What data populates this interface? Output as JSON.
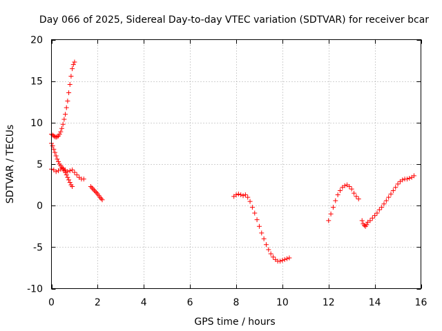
{
  "chart_data": {
    "type": "scatter",
    "title": "Day 066 of 2025, Sidereal Day-to-day VTEC variation (SDTVAR) for receiver bcar",
    "xlabel": "GPS time / hours",
    "ylabel": "SDTVAR / TECUs",
    "xlim": [
      0,
      16
    ],
    "ylim": [
      -10,
      20
    ],
    "xticks": [
      0,
      2,
      4,
      6,
      8,
      10,
      12,
      14,
      16
    ],
    "yticks": [
      -10,
      -5,
      0,
      5,
      10,
      15,
      20
    ],
    "grid": true,
    "marker": "+",
    "color": "#ff0000",
    "series": [
      {
        "name": "segment-1",
        "x": [
          0.0,
          0.05,
          0.1,
          0.15,
          0.2,
          0.25,
          0.3,
          0.35,
          0.4,
          0.45,
          0.5,
          0.55,
          0.6,
          0.65,
          0.7,
          0.75,
          0.8,
          0.85,
          0.9,
          0.95,
          1.0
        ],
        "y": [
          8.6,
          8.5,
          8.4,
          8.3,
          8.25,
          8.3,
          8.4,
          8.6,
          8.9,
          9.3,
          9.8,
          10.4,
          11.0,
          11.8,
          12.6,
          13.6,
          14.6,
          15.6,
          16.5,
          17.0,
          17.3
        ]
      },
      {
        "name": "segment-2",
        "x": [
          0.0,
          0.05,
          0.1,
          0.15,
          0.2,
          0.25,
          0.3,
          0.35,
          0.4,
          0.45,
          0.5,
          0.55,
          0.6,
          0.65,
          0.7,
          0.75,
          0.8,
          0.85,
          0.9
        ],
        "y": [
          7.5,
          7.2,
          6.8,
          6.4,
          6.0,
          5.6,
          5.3,
          5.0,
          4.8,
          4.6,
          4.4,
          4.2,
          4.0,
          3.7,
          3.4,
          3.1,
          2.8,
          2.5,
          2.3
        ]
      },
      {
        "name": "segment-3",
        "x": [
          0.0,
          0.1,
          0.2,
          0.3,
          0.4,
          0.5,
          0.6,
          0.7,
          0.8,
          0.9,
          1.0,
          1.1,
          1.2,
          1.3,
          1.4
        ],
        "y": [
          4.4,
          4.3,
          4.1,
          4.2,
          4.4,
          4.5,
          4.3,
          4.1,
          4.2,
          4.3,
          4.0,
          3.7,
          3.4,
          3.2,
          3.2
        ]
      },
      {
        "name": "segment-4",
        "x": [
          1.7,
          1.75,
          1.8,
          1.85,
          1.9,
          1.95,
          2.0,
          2.05,
          2.1,
          2.15,
          2.2
        ],
        "y": [
          2.3,
          2.15,
          2.0,
          1.85,
          1.7,
          1.55,
          1.4,
          1.2,
          1.0,
          0.85,
          0.7
        ]
      },
      {
        "name": "segment-5",
        "x": [
          7.9,
          8.0,
          8.1,
          8.2,
          8.3,
          8.4,
          8.5,
          8.6,
          8.7,
          8.8,
          8.9,
          9.0,
          9.1,
          9.2,
          9.3,
          9.4,
          9.5,
          9.6,
          9.7,
          9.8,
          9.9,
          10.0,
          10.1,
          10.2,
          10.3
        ],
        "y": [
          1.1,
          1.3,
          1.4,
          1.3,
          1.2,
          1.3,
          1.0,
          0.5,
          -0.2,
          -0.9,
          -1.7,
          -2.5,
          -3.3,
          -4.0,
          -4.7,
          -5.3,
          -5.8,
          -6.2,
          -6.5,
          -6.7,
          -6.7,
          -6.6,
          -6.5,
          -6.4,
          -6.3
        ]
      },
      {
        "name": "segment-6",
        "x": [
          12.0,
          12.1,
          12.2,
          12.3,
          12.4,
          12.5,
          12.6,
          12.7,
          12.8,
          12.9,
          13.0,
          13.1,
          13.2,
          13.3
        ],
        "y": [
          -1.8,
          -1.0,
          -0.2,
          0.6,
          1.3,
          1.8,
          2.2,
          2.4,
          2.5,
          2.3,
          2.0,
          1.5,
          1.1,
          0.8
        ]
      },
      {
        "name": "segment-7",
        "x": [
          13.45,
          13.5,
          13.55,
          13.6,
          13.65,
          13.7,
          13.8,
          13.9,
          14.0,
          14.1,
          14.2,
          14.3,
          14.4,
          14.5,
          14.6,
          14.7,
          14.8,
          14.9,
          15.0,
          15.1,
          15.2,
          15.3,
          15.4,
          15.5,
          15.6,
          15.7
        ],
        "y": [
          -1.8,
          -2.2,
          -2.4,
          -2.5,
          -2.3,
          -2.0,
          -1.8,
          -1.5,
          -1.2,
          -0.9,
          -0.5,
          -0.2,
          0.2,
          0.6,
          1.0,
          1.4,
          1.8,
          2.2,
          2.6,
          2.9,
          3.1,
          3.2,
          3.2,
          3.3,
          3.4,
          3.6
        ]
      }
    ]
  }
}
